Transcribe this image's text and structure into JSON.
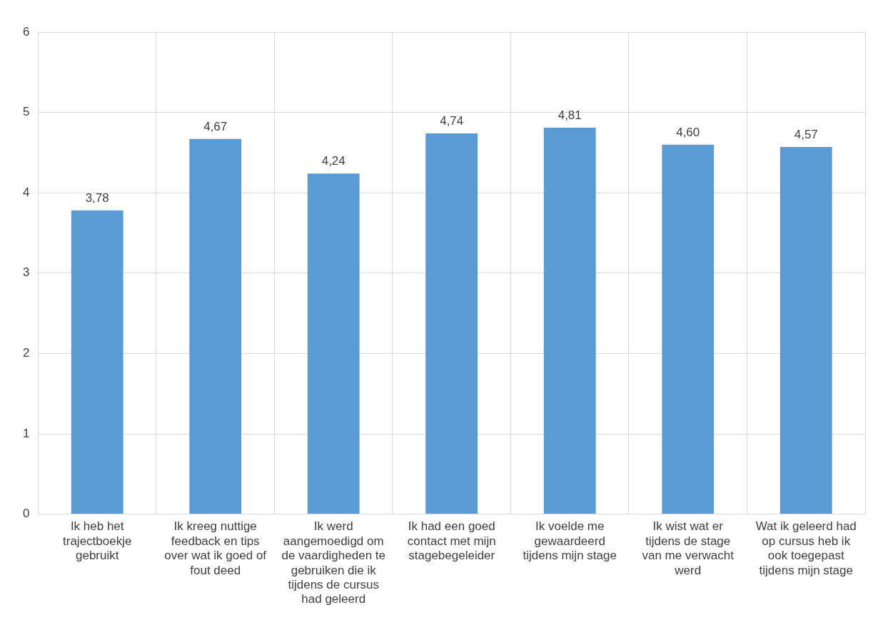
{
  "chart_data": {
    "type": "bar",
    "categories": [
      "Ik heb het trajectboekje gebruikt",
      "Ik kreeg nuttige feedback en tips over wat ik goed of fout deed",
      "Ik werd aangemoedigd om de vaardigheden te gebruiken die ik tijdens de cursus had geleerd",
      "Ik had een goed contact met mijn stagebegeleider",
      "Ik voelde me gewaardeerd tijdens mijn stage",
      "Ik wist wat er tijdens de stage van me verwacht werd",
      "Wat ik geleerd had op cursus heb ik ook toegepast tijdens mijn stage"
    ],
    "values": [
      3.78,
      4.67,
      4.24,
      4.74,
      4.81,
      4.6,
      4.57
    ],
    "value_labels": [
      "3,78",
      "4,67",
      "4,24",
      "4,74",
      "4,81",
      "4,60",
      "4,57"
    ],
    "color": "#5b9bd5",
    "ylim": [
      0,
      6
    ],
    "yticks": [
      0,
      1,
      2,
      3,
      4,
      5,
      6
    ],
    "grid": true,
    "legend": false
  }
}
